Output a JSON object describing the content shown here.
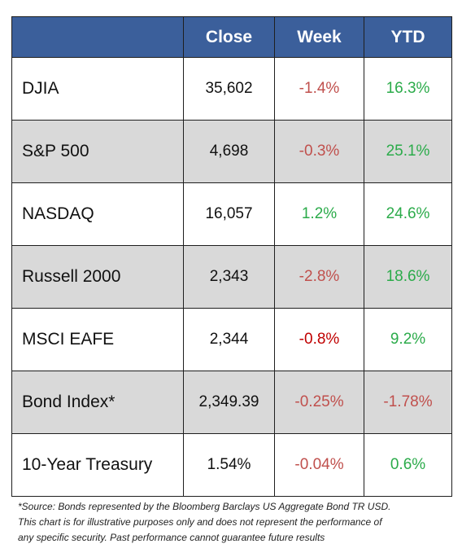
{
  "table": {
    "headers": [
      "",
      "Close",
      "Week",
      "YTD"
    ],
    "rows": [
      {
        "name": "DJIA",
        "close": "35,602",
        "week": "-1.4%",
        "ytd": "16.3%"
      },
      {
        "name": "S&P 500",
        "close": "4,698",
        "week": "-0.3%",
        "ytd": "25.1%"
      },
      {
        "name": "NASDAQ",
        "close": "16,057",
        "week": "1.2%",
        "ytd": "24.6%"
      },
      {
        "name": "Russell 2000",
        "close": "2,343",
        "week": "-2.8%",
        "ytd": "18.6%"
      },
      {
        "name": "MSCI EAFE",
        "close": "2,344",
        "week": "-0.8%",
        "ytd": "9.2%"
      },
      {
        "name": "Bond Index*",
        "close": "2,349.39",
        "week": "-0.25%",
        "ytd": "-1.78%"
      },
      {
        "name": "10-Year Treasury",
        "close": "1.54%",
        "week": "-0.04%",
        "ytd": "0.6%"
      }
    ]
  },
  "colors": {
    "header_bg": "#3b5f9b",
    "positive": "#2bab4a",
    "negative": "#c0504d",
    "negative_strong": "#c00000",
    "row_shade": "#d9d9d9"
  },
  "footnote": {
    "line1": "*Source: Bonds represented by the Bloomberg Barclays US Aggregate Bond TR USD.",
    "line2": "This chart is for illustrative purposes only and does not represent the performance of",
    "line3": "any specific security. Past performance cannot guarantee future results"
  }
}
